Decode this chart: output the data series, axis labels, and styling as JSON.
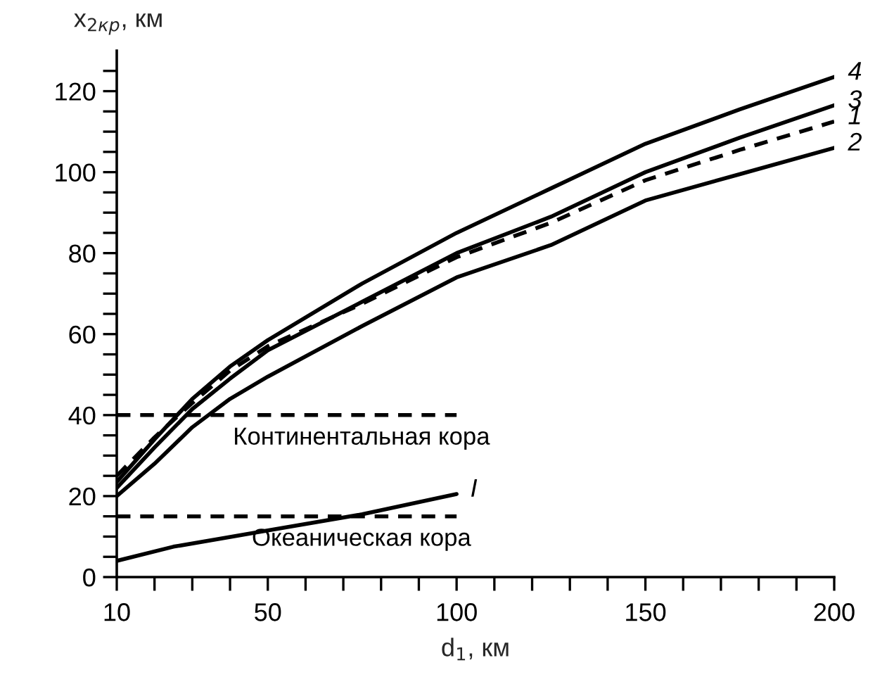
{
  "chart_data": {
    "type": "line",
    "xlabel": "d$_{1}$, км",
    "ylabel": "x$_{2кр}$, км",
    "xlim": [
      10,
      200
    ],
    "ylim": [
      0,
      130
    ],
    "xticks": [
      10,
      {
        "value": 20,
        "label": null
      },
      {
        "value": 30,
        "label": null
      },
      {
        "value": 40,
        "label": null
      },
      50,
      {
        "value": 60,
        "label": null
      },
      {
        "value": 70,
        "label": null
      },
      {
        "value": 80,
        "label": null
      },
      {
        "value": 90,
        "label": null
      },
      100,
      {
        "value": 110,
        "label": null
      },
      {
        "value": 120,
        "label": null
      },
      {
        "value": 130,
        "label": null
      },
      {
        "value": 140,
        "label": null
      },
      150,
      {
        "value": 160,
        "label": null
      },
      {
        "value": 170,
        "label": null
      },
      {
        "value": 180,
        "label": null
      },
      {
        "value": 190,
        "label": null
      },
      200
    ],
    "yticks": [
      0,
      {
        "value": 5,
        "label": null
      },
      {
        "value": 10,
        "label": null
      },
      {
        "value": 15,
        "label": null
      },
      20,
      {
        "value": 25,
        "label": null
      },
      {
        "value": 30,
        "label": null
      },
      {
        "value": 35,
        "label": null
      },
      40,
      {
        "value": 45,
        "label": null
      },
      {
        "value": 50,
        "label": null
      },
      {
        "value": 55,
        "label": null
      },
      60,
      {
        "value": 65,
        "label": null
      },
      {
        "value": 70,
        "label": null
      },
      {
        "value": 75,
        "label": null
      },
      80,
      {
        "value": 85,
        "label": null
      },
      {
        "value": 90,
        "label": null
      },
      {
        "value": 95,
        "label": null
      },
      100,
      {
        "value": 105,
        "label": null
      },
      {
        "value": 110,
        "label": null
      },
      {
        "value": 115,
        "label": null
      },
      120,
      {
        "value": 125,
        "label": null
      }
    ],
    "grid": false,
    "legend": false,
    "series": [
      {
        "name": "4",
        "color": "#000000",
        "line_style": "solid",
        "x": [
          10,
          20,
          30,
          40,
          50,
          75,
          100,
          125,
          150,
          175,
          200
        ],
        "values": [
          23.5,
          34,
          44,
          52,
          58.5,
          72.5,
          85,
          96,
          107,
          115.5,
          123.5
        ]
      },
      {
        "name": "3",
        "color": "#000000",
        "line_style": "solid",
        "x": [
          10,
          20,
          30,
          40,
          50,
          75,
          100,
          125,
          150,
          175,
          200
        ],
        "values": [
          22,
          32,
          41.5,
          49,
          56,
          68,
          80,
          89,
          100,
          108.5,
          116.5
        ]
      },
      {
        "name": "1",
        "color": "#000000",
        "line_style": "dashed",
        "x": [
          10,
          20,
          30,
          40,
          50,
          75,
          100,
          125,
          150,
          175,
          200
        ],
        "values": [
          25,
          34.5,
          43,
          51,
          57,
          67.5,
          79,
          87.5,
          98,
          105.5,
          112.5
        ]
      },
      {
        "name": "2",
        "color": "#000000",
        "line_style": "solid",
        "x": [
          10,
          20,
          30,
          40,
          50,
          75,
          100,
          125,
          150,
          175,
          200
        ],
        "values": [
          20,
          28,
          37,
          44,
          49.5,
          62,
          74,
          82,
          93,
          99.5,
          106
        ]
      },
      {
        "name": "I",
        "color": "#000000",
        "line_style": "solid",
        "x": [
          10,
          25,
          50,
          75,
          100
        ],
        "values": [
          4,
          7.5,
          11.5,
          15.5,
          20.5
        ]
      },
      {
        "name": "Континентальная кора",
        "color": "#000000",
        "line_style": "dashed",
        "x": [
          10,
          100
        ],
        "values": [
          40,
          40
        ]
      },
      {
        "name": "Океаническая кора",
        "color": "#000000",
        "line_style": "dashed",
        "x": [
          10,
          100
        ],
        "values": [
          15,
          15
        ]
      }
    ]
  }
}
